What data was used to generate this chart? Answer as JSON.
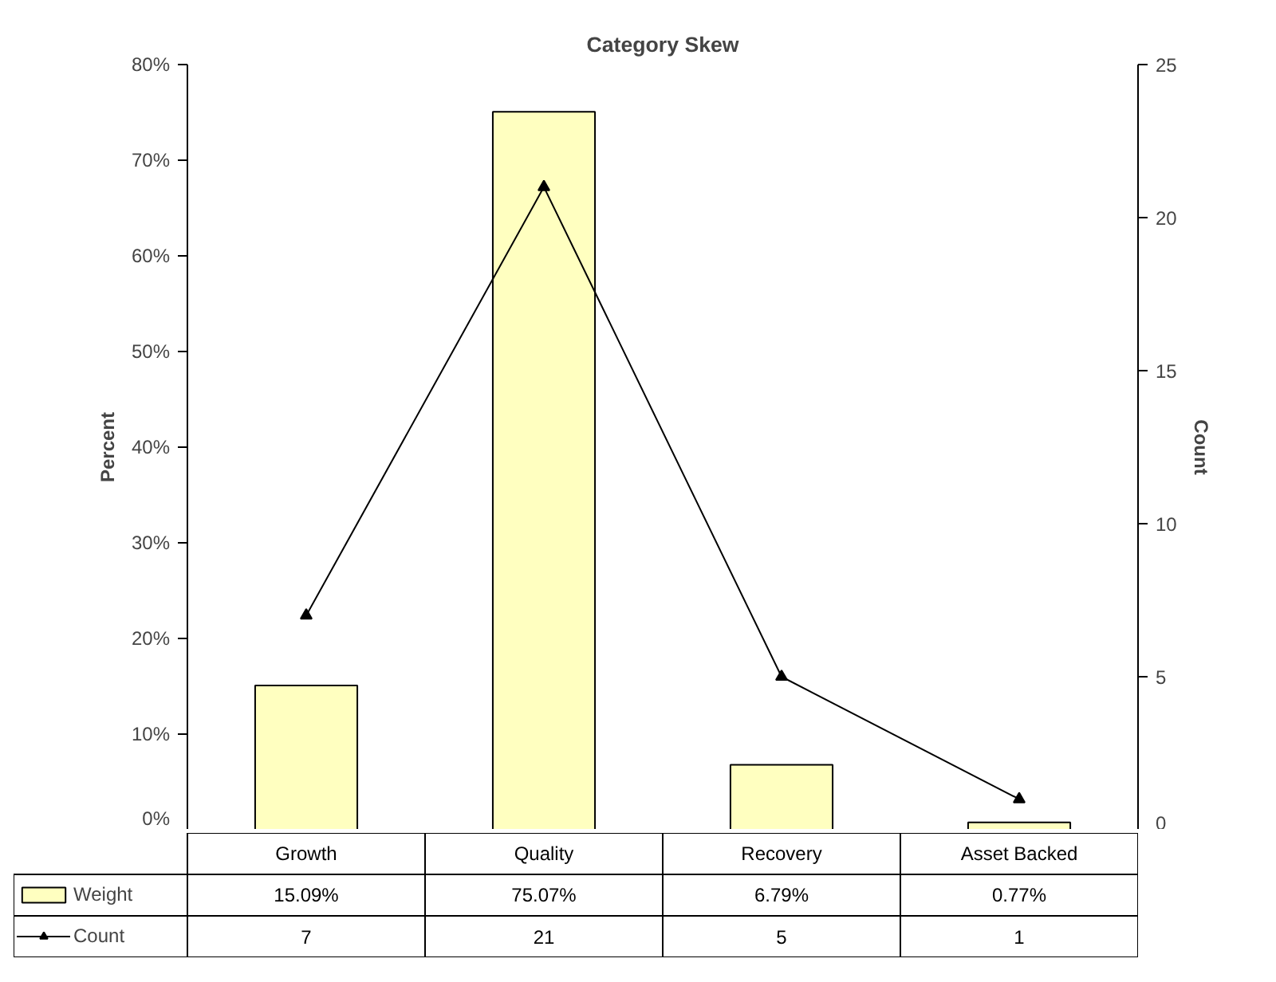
{
  "chart_data": {
    "type": "bar",
    "title": "Category Skew",
    "ylabel": "Percent",
    "y2label": "Count",
    "categories": [
      "Growth",
      "Quality",
      "Recovery",
      "Asset Backed"
    ],
    "series": [
      {
        "name": "Weight",
        "color": "#ffffc0",
        "values": [
          15.09,
          75.07,
          6.79,
          0.77
        ],
        "value_labels": [
          "15.09%",
          "75.07%",
          "6.79%",
          "0.77%"
        ]
      },
      {
        "name": "Count",
        "type": "line",
        "axis": "y2",
        "color": "#000000",
        "marker": "triangle",
        "values": [
          7,
          21,
          5,
          1
        ],
        "value_labels": [
          "7",
          "21",
          "5",
          "1"
        ]
      }
    ],
    "ylim": [
      0,
      80
    ],
    "yticks": [
      {
        "value": 0,
        "label": "0%"
      },
      {
        "value": 10,
        "label": "10%"
      },
      {
        "value": 20,
        "label": "20%"
      },
      {
        "value": 30,
        "label": "30%"
      },
      {
        "value": 40,
        "label": "40%"
      },
      {
        "value": 50,
        "label": "50%"
      },
      {
        "value": 60,
        "label": "60%"
      },
      {
        "value": 70,
        "label": "70%"
      },
      {
        "value": 80,
        "label": "80%"
      }
    ],
    "y2lim": [
      0,
      25
    ],
    "y2ticks": [
      0,
      5,
      10,
      15,
      20,
      25
    ],
    "grid": false,
    "legend": "bottom left"
  }
}
